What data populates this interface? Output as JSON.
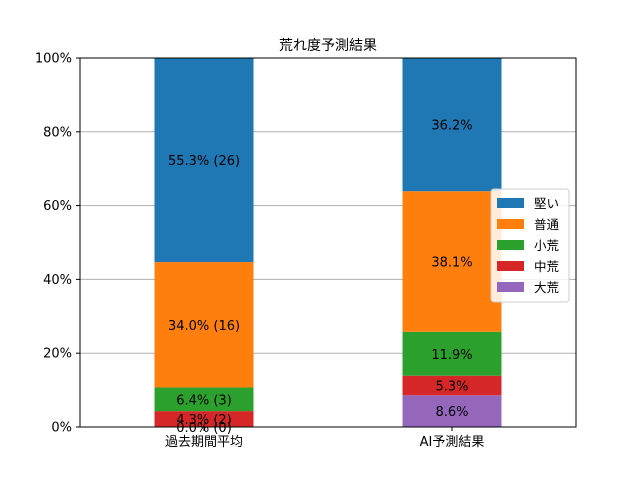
{
  "chart_data": {
    "type": "bar",
    "stacked": true,
    "title": "荒れ度予測結果",
    "xlabel": "",
    "ylabel": "",
    "ylim": [
      0,
      100
    ],
    "y_ticks": [
      "0%",
      "20%",
      "40%",
      "60%",
      "80%",
      "100%"
    ],
    "grid": "y",
    "legend_position": "right",
    "categories": [
      "過去期間平均",
      "AI予測結果"
    ],
    "series": [
      {
        "name": "大荒",
        "color": "#9467bd",
        "values": [
          0.0,
          8.6
        ],
        "labels": [
          "0.0% (0)",
          "8.6%"
        ]
      },
      {
        "name": "中荒",
        "color": "#d62728",
        "values": [
          4.3,
          5.3
        ],
        "labels": [
          "4.3% (2)",
          "5.3%"
        ]
      },
      {
        "name": "小荒",
        "color": "#2ca02c",
        "values": [
          6.4,
          11.9
        ],
        "labels": [
          "6.4% (3)",
          "11.9%"
        ]
      },
      {
        "name": "普通",
        "color": "#ff7f0e",
        "values": [
          34.0,
          38.1
        ],
        "labels": [
          "34.0% (16)",
          "38.1%"
        ]
      },
      {
        "name": "堅い",
        "color": "#1f77b4",
        "values": [
          55.3,
          36.2
        ],
        "labels": [
          "55.3% (26)",
          "36.2%"
        ]
      }
    ],
    "legend_order": [
      "堅い",
      "普通",
      "小荒",
      "中荒",
      "大荒"
    ]
  }
}
